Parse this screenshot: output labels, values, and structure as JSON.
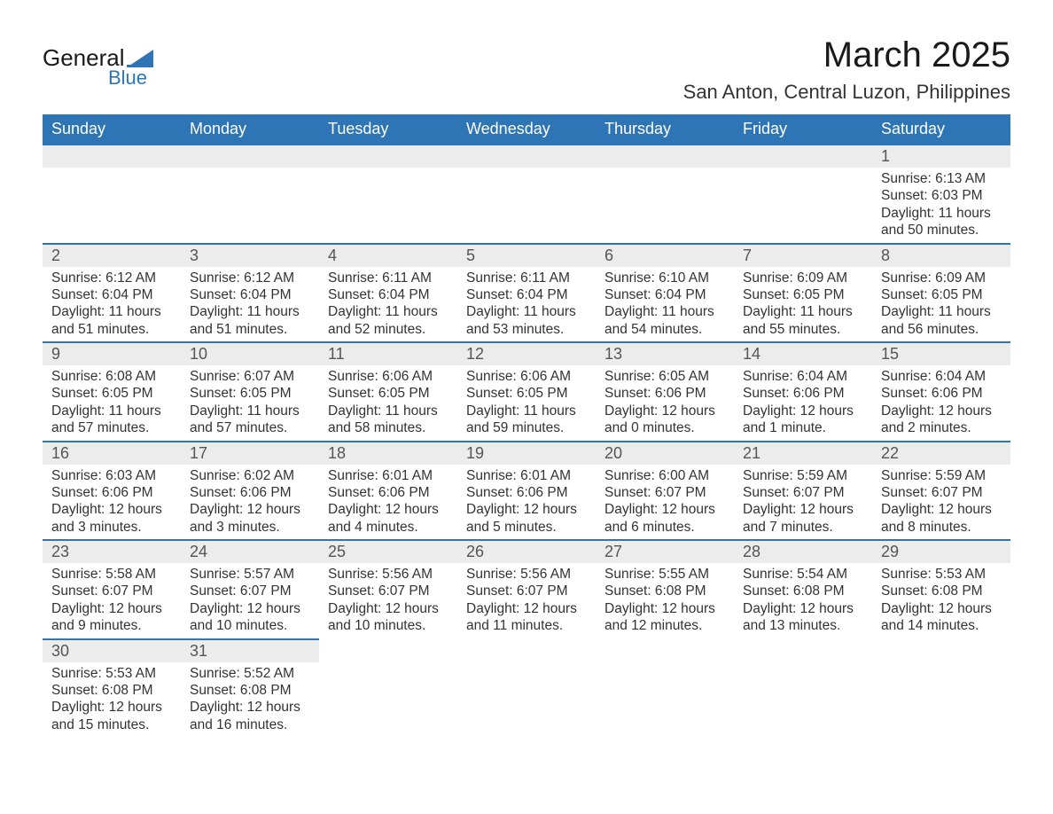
{
  "logo": {
    "word1": "General",
    "word2": "Blue"
  },
  "title": {
    "month_year": "March 2025",
    "location": "San Anton, Central Luzon, Philippines"
  },
  "colors": {
    "header_bg": "#2e75b6",
    "header_text": "#ffffff",
    "daybar_bg": "#ececec",
    "daybar_border": "#2e75b6",
    "body_text": "#333333",
    "logo_blue": "#2e75b6"
  },
  "weekdays": [
    "Sunday",
    "Monday",
    "Tuesday",
    "Wednesday",
    "Thursday",
    "Friday",
    "Saturday"
  ],
  "weeks": [
    [
      {
        "day": "",
        "sunrise": "",
        "sunset": "",
        "daylight": ""
      },
      {
        "day": "",
        "sunrise": "",
        "sunset": "",
        "daylight": ""
      },
      {
        "day": "",
        "sunrise": "",
        "sunset": "",
        "daylight": ""
      },
      {
        "day": "",
        "sunrise": "",
        "sunset": "",
        "daylight": ""
      },
      {
        "day": "",
        "sunrise": "",
        "sunset": "",
        "daylight": ""
      },
      {
        "day": "",
        "sunrise": "",
        "sunset": "",
        "daylight": ""
      },
      {
        "day": "1",
        "sunrise": "Sunrise: 6:13 AM",
        "sunset": "Sunset: 6:03 PM",
        "daylight": "Daylight: 11 hours and 50 minutes."
      }
    ],
    [
      {
        "day": "2",
        "sunrise": "Sunrise: 6:12 AM",
        "sunset": "Sunset: 6:04 PM",
        "daylight": "Daylight: 11 hours and 51 minutes."
      },
      {
        "day": "3",
        "sunrise": "Sunrise: 6:12 AM",
        "sunset": "Sunset: 6:04 PM",
        "daylight": "Daylight: 11 hours and 51 minutes."
      },
      {
        "day": "4",
        "sunrise": "Sunrise: 6:11 AM",
        "sunset": "Sunset: 6:04 PM",
        "daylight": "Daylight: 11 hours and 52 minutes."
      },
      {
        "day": "5",
        "sunrise": "Sunrise: 6:11 AM",
        "sunset": "Sunset: 6:04 PM",
        "daylight": "Daylight: 11 hours and 53 minutes."
      },
      {
        "day": "6",
        "sunrise": "Sunrise: 6:10 AM",
        "sunset": "Sunset: 6:04 PM",
        "daylight": "Daylight: 11 hours and 54 minutes."
      },
      {
        "day": "7",
        "sunrise": "Sunrise: 6:09 AM",
        "sunset": "Sunset: 6:05 PM",
        "daylight": "Daylight: 11 hours and 55 minutes."
      },
      {
        "day": "8",
        "sunrise": "Sunrise: 6:09 AM",
        "sunset": "Sunset: 6:05 PM",
        "daylight": "Daylight: 11 hours and 56 minutes."
      }
    ],
    [
      {
        "day": "9",
        "sunrise": "Sunrise: 6:08 AM",
        "sunset": "Sunset: 6:05 PM",
        "daylight": "Daylight: 11 hours and 57 minutes."
      },
      {
        "day": "10",
        "sunrise": "Sunrise: 6:07 AM",
        "sunset": "Sunset: 6:05 PM",
        "daylight": "Daylight: 11 hours and 57 minutes."
      },
      {
        "day": "11",
        "sunrise": "Sunrise: 6:06 AM",
        "sunset": "Sunset: 6:05 PM",
        "daylight": "Daylight: 11 hours and 58 minutes."
      },
      {
        "day": "12",
        "sunrise": "Sunrise: 6:06 AM",
        "sunset": "Sunset: 6:05 PM",
        "daylight": "Daylight: 11 hours and 59 minutes."
      },
      {
        "day": "13",
        "sunrise": "Sunrise: 6:05 AM",
        "sunset": "Sunset: 6:06 PM",
        "daylight": "Daylight: 12 hours and 0 minutes."
      },
      {
        "day": "14",
        "sunrise": "Sunrise: 6:04 AM",
        "sunset": "Sunset: 6:06 PM",
        "daylight": "Daylight: 12 hours and 1 minute."
      },
      {
        "day": "15",
        "sunrise": "Sunrise: 6:04 AM",
        "sunset": "Sunset: 6:06 PM",
        "daylight": "Daylight: 12 hours and 2 minutes."
      }
    ],
    [
      {
        "day": "16",
        "sunrise": "Sunrise: 6:03 AM",
        "sunset": "Sunset: 6:06 PM",
        "daylight": "Daylight: 12 hours and 3 minutes."
      },
      {
        "day": "17",
        "sunrise": "Sunrise: 6:02 AM",
        "sunset": "Sunset: 6:06 PM",
        "daylight": "Daylight: 12 hours and 3 minutes."
      },
      {
        "day": "18",
        "sunrise": "Sunrise: 6:01 AM",
        "sunset": "Sunset: 6:06 PM",
        "daylight": "Daylight: 12 hours and 4 minutes."
      },
      {
        "day": "19",
        "sunrise": "Sunrise: 6:01 AM",
        "sunset": "Sunset: 6:06 PM",
        "daylight": "Daylight: 12 hours and 5 minutes."
      },
      {
        "day": "20",
        "sunrise": "Sunrise: 6:00 AM",
        "sunset": "Sunset: 6:07 PM",
        "daylight": "Daylight: 12 hours and 6 minutes."
      },
      {
        "day": "21",
        "sunrise": "Sunrise: 5:59 AM",
        "sunset": "Sunset: 6:07 PM",
        "daylight": "Daylight: 12 hours and 7 minutes."
      },
      {
        "day": "22",
        "sunrise": "Sunrise: 5:59 AM",
        "sunset": "Sunset: 6:07 PM",
        "daylight": "Daylight: 12 hours and 8 minutes."
      }
    ],
    [
      {
        "day": "23",
        "sunrise": "Sunrise: 5:58 AM",
        "sunset": "Sunset: 6:07 PM",
        "daylight": "Daylight: 12 hours and 9 minutes."
      },
      {
        "day": "24",
        "sunrise": "Sunrise: 5:57 AM",
        "sunset": "Sunset: 6:07 PM",
        "daylight": "Daylight: 12 hours and 10 minutes."
      },
      {
        "day": "25",
        "sunrise": "Sunrise: 5:56 AM",
        "sunset": "Sunset: 6:07 PM",
        "daylight": "Daylight: 12 hours and 10 minutes."
      },
      {
        "day": "26",
        "sunrise": "Sunrise: 5:56 AM",
        "sunset": "Sunset: 6:07 PM",
        "daylight": "Daylight: 12 hours and 11 minutes."
      },
      {
        "day": "27",
        "sunrise": "Sunrise: 5:55 AM",
        "sunset": "Sunset: 6:08 PM",
        "daylight": "Daylight: 12 hours and 12 minutes."
      },
      {
        "day": "28",
        "sunrise": "Sunrise: 5:54 AM",
        "sunset": "Sunset: 6:08 PM",
        "daylight": "Daylight: 12 hours and 13 minutes."
      },
      {
        "day": "29",
        "sunrise": "Sunrise: 5:53 AM",
        "sunset": "Sunset: 6:08 PM",
        "daylight": "Daylight: 12 hours and 14 minutes."
      }
    ],
    [
      {
        "day": "30",
        "sunrise": "Sunrise: 5:53 AM",
        "sunset": "Sunset: 6:08 PM",
        "daylight": "Daylight: 12 hours and 15 minutes."
      },
      {
        "day": "31",
        "sunrise": "Sunrise: 5:52 AM",
        "sunset": "Sunset: 6:08 PM",
        "daylight": "Daylight: 12 hours and 16 minutes."
      },
      {
        "day": "",
        "sunrise": "",
        "sunset": "",
        "daylight": ""
      },
      {
        "day": "",
        "sunrise": "",
        "sunset": "",
        "daylight": ""
      },
      {
        "day": "",
        "sunrise": "",
        "sunset": "",
        "daylight": ""
      },
      {
        "day": "",
        "sunrise": "",
        "sunset": "",
        "daylight": ""
      },
      {
        "day": "",
        "sunrise": "",
        "sunset": "",
        "daylight": ""
      }
    ]
  ]
}
